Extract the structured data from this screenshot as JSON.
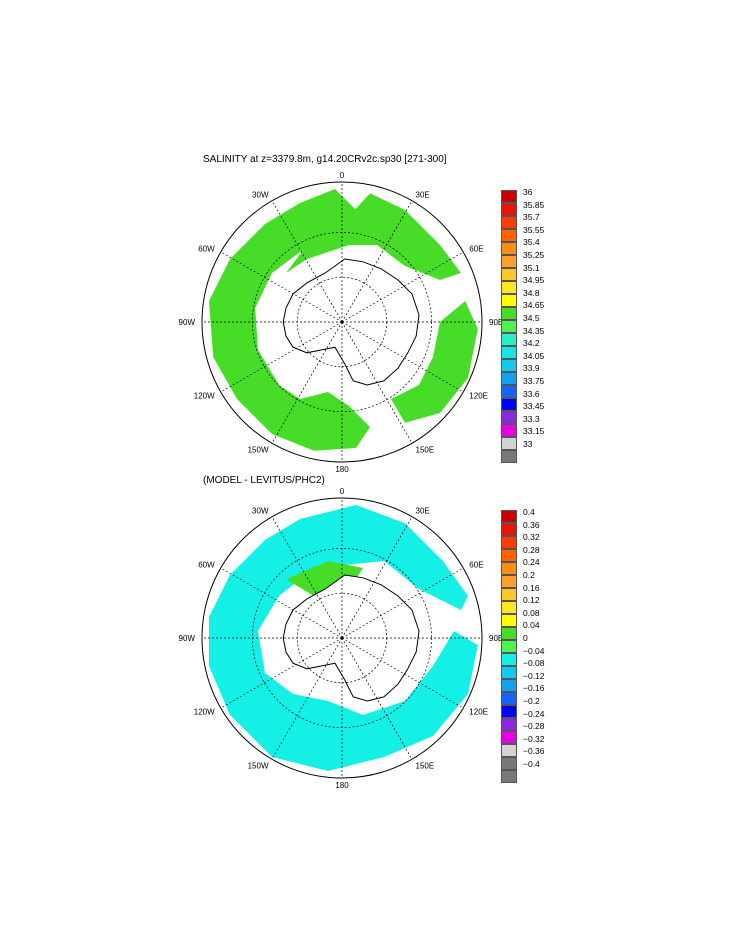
{
  "panels": [
    {
      "id": "salinity",
      "title": "SALINITY at z=3379.8m, g14.20CRv2c.sp30 [271-300]",
      "labels": {
        "lon_0": "0",
        "lon_30e": "30E",
        "lon_60e": "60E",
        "lon_90e": "90E",
        "lon_120e": "120E",
        "lon_150e": "150E",
        "lon_180": "180",
        "lon_150w": "150W",
        "lon_120w": "120W",
        "lon_90w": "90W",
        "lon_60w": "60W",
        "lon_30w": "30W"
      },
      "legend": {
        "values": [
          "36",
          "35.85",
          "35.7",
          "35.55",
          "35.4",
          "35.25",
          "35.1",
          "34.95",
          "34.8",
          "34.65",
          "34.5",
          "34.35",
          "34.2",
          "34.05",
          "33.9",
          "33.75",
          "33.6",
          "33.45",
          "33.3",
          "33.15",
          "33"
        ],
        "colors": [
          "#c80000",
          "#e61400",
          "#ff3c00",
          "#ff6400",
          "#ff8c14",
          "#ffa028",
          "#ffc828",
          "#ffe61e",
          "#ffff00",
          "#46dc28",
          "#50f050",
          "#28f0c8",
          "#14e6e6",
          "#14c8f0",
          "#14a0f0",
          "#1464ff",
          "#0000ff",
          "#8c28dc",
          "#e600e6",
          "#d2d2d2",
          "#787878"
        ]
      },
      "fill_color": "#46dc28"
    },
    {
      "id": "difference",
      "title": "(MODEL - LEVITUS/PHC2)",
      "labels": {
        "lon_0": "0",
        "lon_30e": "30E",
        "lon_60e": "60E",
        "lon_90e": "90E",
        "lon_120e": "120E",
        "lon_150e": "150E",
        "lon_180": "180",
        "lon_150w": "150W",
        "lon_120w": "120W",
        "lon_90w": "90W",
        "lon_60w": "60W",
        "lon_30w": "30W"
      },
      "legend": {
        "values": [
          "0.4",
          "0.36",
          "0.32",
          "0.28",
          "0.24",
          "0.2",
          "0.16",
          "0.12",
          "0.08",
          "0.04",
          "0",
          "−0.04",
          "−0.08",
          "−0.12",
          "−0.16",
          "−0.2",
          "−0.24",
          "−0.28",
          "−0.32",
          "−0.36",
          "−0.4"
        ],
        "colors": [
          "#c80000",
          "#e61400",
          "#ff3c00",
          "#ff6400",
          "#ff8c14",
          "#ffa028",
          "#ffc828",
          "#ffe61e",
          "#ffff00",
          "#46dc28",
          "#50f050",
          "#14f0e6",
          "#14c8f0",
          "#14a0f0",
          "#1464ff",
          "#0000ff",
          "#8c28dc",
          "#e600e6",
          "#d2d2d2",
          "#787878",
          "#787878"
        ]
      },
      "fill_color": "#14f0e6",
      "secondary_fill": "#46dc28"
    }
  ]
}
